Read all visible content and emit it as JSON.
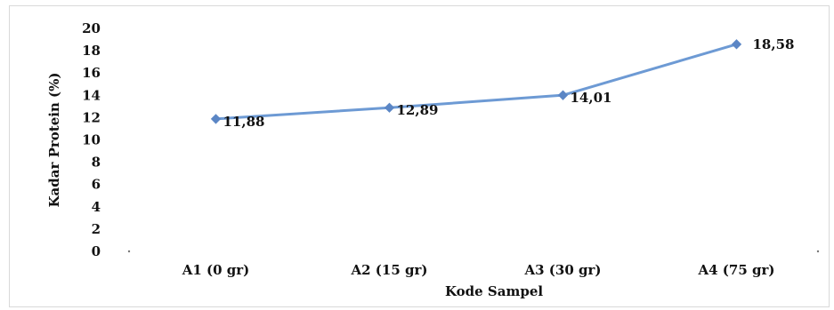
{
  "chart_data": {
    "type": "line",
    "title": "",
    "xlabel": "Kode Sampel",
    "ylabel": "Kadar Protein (%)",
    "categories": [
      "A1 (0 gr)",
      "A2 (15 gr)",
      "A3 (30 gr)",
      "A4 (75 gr)"
    ],
    "series": [
      {
        "values": [
          11.88,
          12.89,
          14.01,
          18.58
        ]
      }
    ],
    "data_labels": [
      "11,88",
      "12,89",
      "14,01",
      "18,58"
    ],
    "yticks": [
      "0",
      "2",
      "4",
      "6",
      "8",
      "10",
      "12",
      "14",
      "16",
      "18",
      "20"
    ],
    "ylim": [
      0,
      20
    ],
    "grid": false,
    "line_color": "#6d9ad4",
    "marker_color": "#5b86c5"
  }
}
